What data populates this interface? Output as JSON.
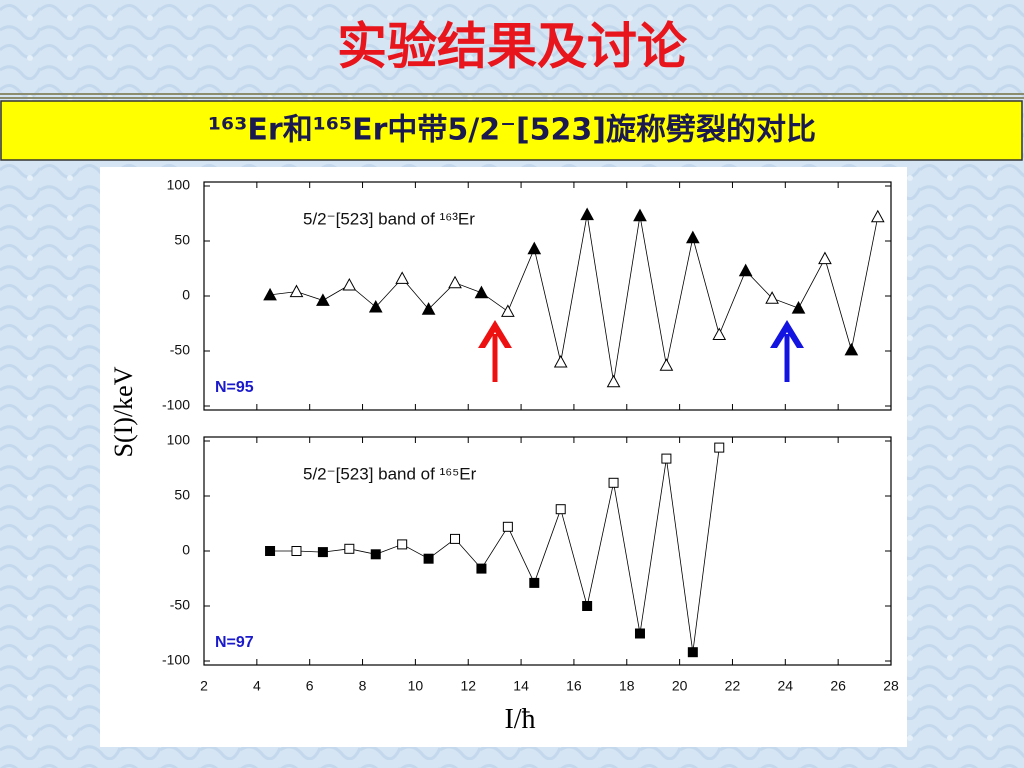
{
  "slide_title": "实验结果及讨论",
  "subtitle": "¹⁶³Er和¹⁶⁵Er中带5/2⁻[523]旋称劈裂的对比",
  "chart_data": [
    {
      "type": "line",
      "title": "5/2⁻[523] band of ¹⁶³Er",
      "annotation": "N=95",
      "ylabel": "S(I)/keV",
      "x": [
        4.5,
        5.5,
        6.5,
        7.5,
        8.5,
        9.5,
        10.5,
        11.5,
        12.5,
        13.5,
        14.5,
        15.5,
        16.5,
        17.5,
        18.5,
        19.5,
        20.5,
        21.5,
        22.5,
        23.5,
        24.5,
        25.5,
        26.5,
        27.5
      ],
      "series": [
        {
          "color": "#000000",
          "marker": "triangle",
          "values": [
            1,
            4,
            -4,
            10,
            -10,
            16,
            -12,
            12,
            3,
            -14,
            43,
            -60,
            74,
            -78,
            73,
            -63,
            53,
            -35,
            23,
            -2,
            -11,
            34,
            -49,
            72
          ],
          "markers_filled": [
            true,
            false,
            true,
            false,
            true,
            false,
            true,
            false,
            true,
            false,
            true,
            false,
            true,
            false,
            true,
            false,
            true,
            false,
            true,
            false,
            true,
            false,
            true,
            false
          ]
        }
      ],
      "xlim": [
        2,
        28
      ],
      "ylim": [
        -100,
        100
      ],
      "yticks": [
        -100,
        -50,
        0,
        50,
        100
      ]
    },
    {
      "type": "line",
      "title": "5/2⁻[523] band of ¹⁶⁵Er",
      "annotation": "N=97",
      "xlabel": "I/ħ",
      "x": [
        4.5,
        5.5,
        6.5,
        7.5,
        8.5,
        9.5,
        10.5,
        11.5,
        12.5,
        13.5,
        14.5,
        15.5,
        16.5,
        17.5,
        18.5,
        19.5,
        20.5,
        21.5
      ],
      "series": [
        {
          "color": "#000000",
          "marker": "square",
          "values": [
            0,
            0,
            -1,
            2,
            -3,
            6,
            -7,
            11,
            -16,
            22,
            -29,
            38,
            -50,
            62,
            -75,
            84,
            -92,
            94
          ],
          "markers_filled": [
            true,
            false,
            true,
            false,
            true,
            false,
            true,
            false,
            true,
            false,
            true,
            false,
            true,
            false,
            true,
            false,
            true,
            false
          ]
        }
      ],
      "xlim": [
        2,
        28
      ],
      "ylim": [
        -100,
        100
      ],
      "yticks": [
        -100,
        -50,
        0,
        50,
        100
      ],
      "xticks": [
        2,
        4,
        6,
        8,
        10,
        12,
        14,
        16,
        18,
        20,
        22,
        24,
        26,
        28
      ]
    }
  ]
}
